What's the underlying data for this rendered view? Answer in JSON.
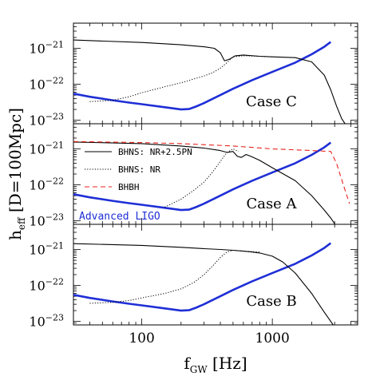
{
  "chart_data": {
    "type": "line",
    "xlabel": "f",
    "xlabel_sub": "GW",
    "xlabel_unit": "[Hz]",
    "ylabel": "h",
    "ylabel_sub": "eff",
    "ylabel_unit": "[D=100Mpc]",
    "x_scale": "log",
    "y_scale": "log",
    "xlim": [
      30,
      4500
    ],
    "ylim": [
      8e-24,
      5e-21
    ],
    "x_ticks": [
      {
        "value": 100,
        "label": "100"
      },
      {
        "value": 1000,
        "label": "1000"
      }
    ],
    "y_ticks": [
      {
        "value": 1e-21,
        "mantissa": "10",
        "exponent": "−21"
      },
      {
        "value": 1e-22,
        "mantissa": "10",
        "exponent": "−22"
      },
      {
        "value": 1e-23,
        "mantissa": "10",
        "exponent": "−23"
      }
    ],
    "colors": {
      "bhns_nr_2.5pn": "#000000",
      "bhns_nr": "#000000",
      "bhbh": "#e8231e",
      "advanced_ligo": "#1f2fd6"
    },
    "legend": {
      "placement": "upper-left",
      "entries": [
        {
          "key": "bhns_nr_2.5pn",
          "label": "BHNS: NR+2.5PN",
          "style": "solid"
        },
        {
          "key": "bhns_nr",
          "label": "BHNS: NR",
          "style": "dotted"
        },
        {
          "key": "bhbh",
          "label": "BHBH",
          "style": "dashed"
        }
      ],
      "ligo_label": "Advanced LIGO"
    },
    "panels": [
      {
        "label": "Case C",
        "series": [
          {
            "key": "bhns_nr_2.5pn",
            "x": [
              30,
              100,
              200,
              300,
              360,
              400,
              430,
              470,
              520,
              600,
              800,
              1000,
              1500,
              2000,
              2500,
              2800,
              3100,
              3400,
              3800
            ],
            "y": [
              1.7e-21,
              1.45e-21,
              1.25e-21,
              1.1e-21,
              1e-21,
              7.5e-22,
              4.5e-22,
              5e-22,
              6.2e-22,
              6.5e-22,
              6e-22,
              5.8e-22,
              5.5e-22,
              4.2e-22,
              1.8e-22,
              7e-23,
              2.5e-23,
              1.1e-23,
              6e-24
            ]
          },
          {
            "key": "bhns_nr",
            "x": [
              40,
              60,
              80,
              100,
              150,
              200,
              250,
              300,
              350,
              400,
              450,
              500,
              600,
              800,
              1000
            ],
            "y": [
              3.3e-23,
              3.6e-23,
              4.5e-23,
              5.8e-23,
              8.5e-23,
              1.1e-22,
              1.4e-22,
              1.7e-22,
              2.1e-22,
              2.8e-22,
              4e-22,
              5.8e-22,
              6.2e-22,
              6e-22,
              5.8e-22
            ]
          }
        ]
      },
      {
        "label": "Case A",
        "series": [
          {
            "key": "bhns_nr_2.5pn",
            "x": [
              30,
              100,
              200,
              300,
              400,
              450,
              500,
              540,
              580,
              630,
              700,
              800,
              1000,
              1500,
              2000,
              2500,
              2800,
              3100
            ],
            "y": [
              1.55e-21,
              1.4e-21,
              1.2e-21,
              1.05e-21,
              9e-22,
              8e-22,
              8.5e-22,
              6.2e-22,
              5.8e-22,
              7e-22,
              6e-22,
              4.8e-22,
              3e-22,
              1.3e-22,
              5e-23,
              2e-23,
              1.2e-23,
              7e-24
            ]
          },
          {
            "key": "bhns_nr",
            "x": [
              150,
              200,
              250,
              300,
              350,
              400,
              450,
              500,
              550
            ],
            "y": [
              2.4e-23,
              4e-23,
              7e-23,
              1.2e-22,
              2.3e-22,
              4.5e-22,
              8e-22,
              1e-21,
              8.5e-22
            ]
          },
          {
            "key": "bhbh",
            "x": [
              30,
              100,
              200,
              500,
              1000,
              2000,
              2800,
              3100,
              3500,
              3900
            ],
            "y": [
              1.6e-21,
              1.5e-21,
              1.4e-21,
              1.2e-21,
              1e-21,
              9e-22,
              8.5e-22,
              4e-22,
              1e-22,
              3e-23
            ]
          }
        ]
      },
      {
        "label": "Case B",
        "series": [
          {
            "key": "bhns_nr_2.5pn",
            "x": [
              30,
              100,
              200,
              300,
              400,
              500,
              600,
              700,
              800,
              1000,
              1200,
              1500,
              2000,
              2500,
              2800,
              3000
            ],
            "y": [
              1.45e-21,
              1.3e-21,
              1.15e-21,
              1.05e-21,
              1e-21,
              9.5e-22,
              9e-22,
              8.5e-22,
              8e-22,
              6.5e-22,
              4.5e-22,
              2.2e-22,
              6e-23,
              1.8e-23,
              1e-23,
              7e-24
            ]
          },
          {
            "key": "bhns_nr",
            "x": [
              40,
              60,
              80,
              100,
              150,
              200,
              250,
              300,
              350,
              400,
              450,
              500,
              600,
              800
            ],
            "y": [
              3.2e-23,
              3.4e-23,
              3.8e-23,
              4.5e-23,
              6e-23,
              8e-23,
              1.2e-22,
              2e-22,
              3.5e-22,
              6e-22,
              8.5e-22,
              9.5e-22,
              9e-22,
              8.5e-22
            ]
          }
        ]
      }
    ],
    "ligo_curve": {
      "x": [
        30,
        40,
        60,
        80,
        100,
        150,
        200,
        230,
        260,
        300,
        400,
        500,
        700,
        1000,
        1500,
        2000,
        2500,
        2800
      ],
      "y": [
        5.5e-23,
        4.5e-23,
        3.6e-23,
        3.1e-23,
        2.8e-23,
        2.3e-23,
        2e-23,
        2.05e-23,
        2.4e-23,
        3e-23,
        5e-23,
        7.5e-23,
        1.3e-22,
        2.2e-22,
        4e-22,
        6.8e-22,
        1.1e-21,
        1.5e-21
      ]
    }
  }
}
